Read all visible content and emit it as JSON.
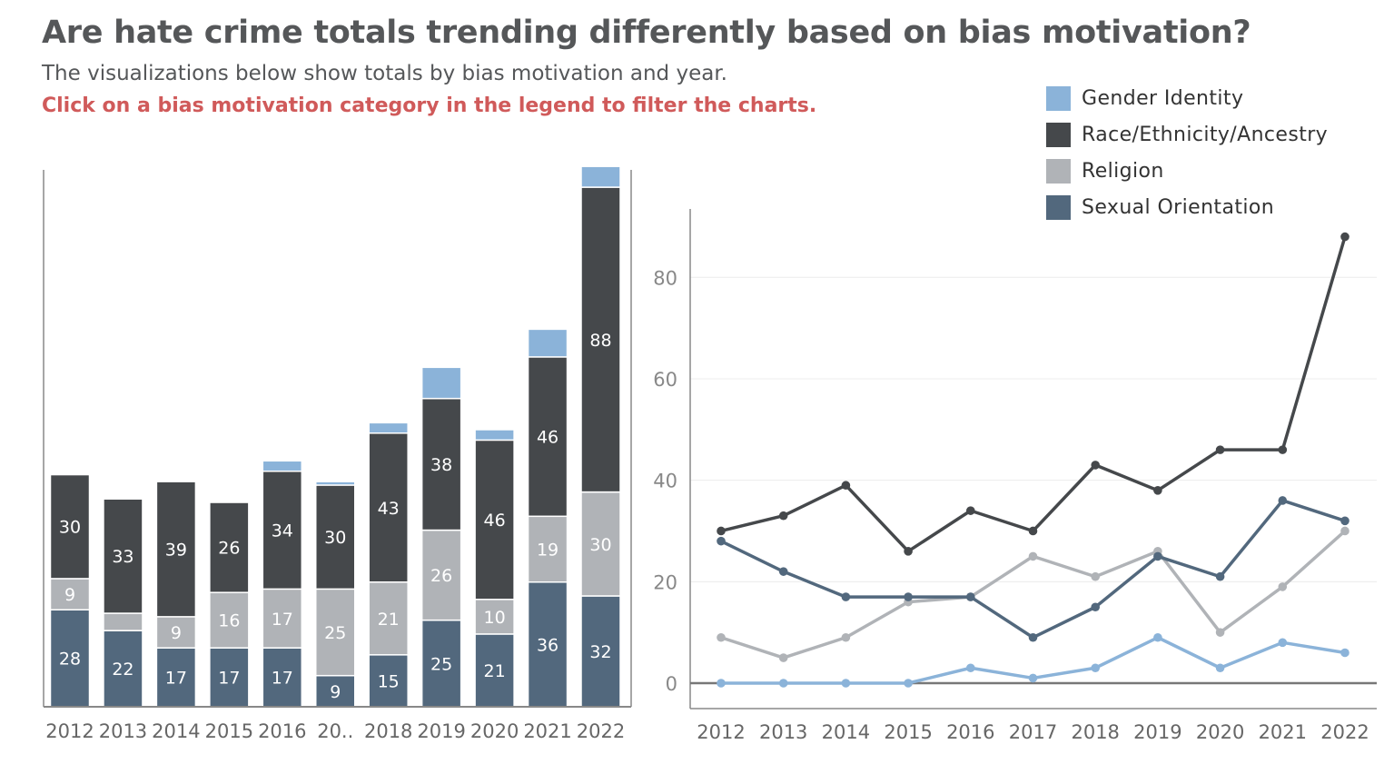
{
  "title": "Are hate crime totals trending differently based on bias motivation?",
  "subtitle": "The visualizations below show totals by bias motivation and year.",
  "instruction": "Click on a bias motivation category in the legend to filter the charts.",
  "colors": {
    "Gender Identity": "#8bb3d9",
    "Race/Ethnicity/Ancestry": "#45484b",
    "Religion": "#b0b3b7",
    "Sexual Orientation": "#52687d"
  },
  "legend": [
    {
      "label": "Gender Identity",
      "color": "#8bb3d9"
    },
    {
      "label": "Race/Ethnicity/Ancestry",
      "color": "#45484b"
    },
    {
      "label": "Religion",
      "color": "#b0b3b7"
    },
    {
      "label": "Sexual Orientation",
      "color": "#52687d"
    }
  ],
  "chart_data": [
    {
      "type": "bar",
      "stacked": true,
      "categories": [
        "2012",
        "2013",
        "2014",
        "2015",
        "2016",
        "20..",
        "2018",
        "2019",
        "2020",
        "2021",
        "2022"
      ],
      "series": [
        {
          "name": "Sexual Orientation",
          "values": [
            28,
            22,
            17,
            17,
            17,
            9,
            15,
            25,
            21,
            36,
            32
          ],
          "labels": [
            "28",
            "22",
            "17",
            "17",
            "17",
            "9",
            "15",
            "25",
            "21",
            "36",
            "32"
          ]
        },
        {
          "name": "Religion",
          "values": [
            9,
            5,
            9,
            16,
            17,
            25,
            21,
            26,
            10,
            19,
            30
          ],
          "labels": [
            "9",
            "",
            "9",
            "16",
            "17",
            "25",
            "21",
            "26",
            "10",
            "19",
            "30"
          ]
        },
        {
          "name": "Race/Ethnicity/Ancestry",
          "values": [
            30,
            33,
            39,
            26,
            34,
            30,
            43,
            38,
            46,
            46,
            88
          ],
          "labels": [
            "30",
            "33",
            "39",
            "26",
            "34",
            "30",
            "43",
            "38",
            "46",
            "46",
            "88"
          ]
        },
        {
          "name": "Gender Identity",
          "values": [
            0,
            0,
            0,
            0,
            3,
            1,
            3,
            9,
            3,
            8,
            6
          ],
          "labels": [
            "",
            "",
            "",
            "",
            "",
            "",
            "",
            "",
            "",
            "",
            ""
          ]
        }
      ],
      "ylim": [
        0,
        155
      ]
    },
    {
      "type": "line",
      "x": [
        "2012",
        "2013",
        "2014",
        "2015",
        "2016",
        "2017",
        "2018",
        "2019",
        "2020",
        "2021",
        "2022"
      ],
      "series": [
        {
          "name": "Race/Ethnicity/Ancestry",
          "values": [
            30,
            33,
            39,
            26,
            34,
            30,
            43,
            38,
            46,
            46,
            88
          ]
        },
        {
          "name": "Sexual Orientation",
          "values": [
            28,
            22,
            17,
            17,
            17,
            9,
            15,
            25,
            21,
            36,
            32
          ]
        },
        {
          "name": "Religion",
          "values": [
            9,
            5,
            9,
            16,
            17,
            25,
            21,
            26,
            10,
            19,
            30
          ]
        },
        {
          "name": "Gender Identity",
          "values": [
            0,
            0,
            0,
            0,
            3,
            1,
            3,
            9,
            3,
            8,
            6
          ]
        }
      ],
      "yticks": [
        "0",
        "20",
        "40",
        "60",
        "80"
      ],
      "ylim": [
        -4.5,
        95
      ]
    }
  ]
}
